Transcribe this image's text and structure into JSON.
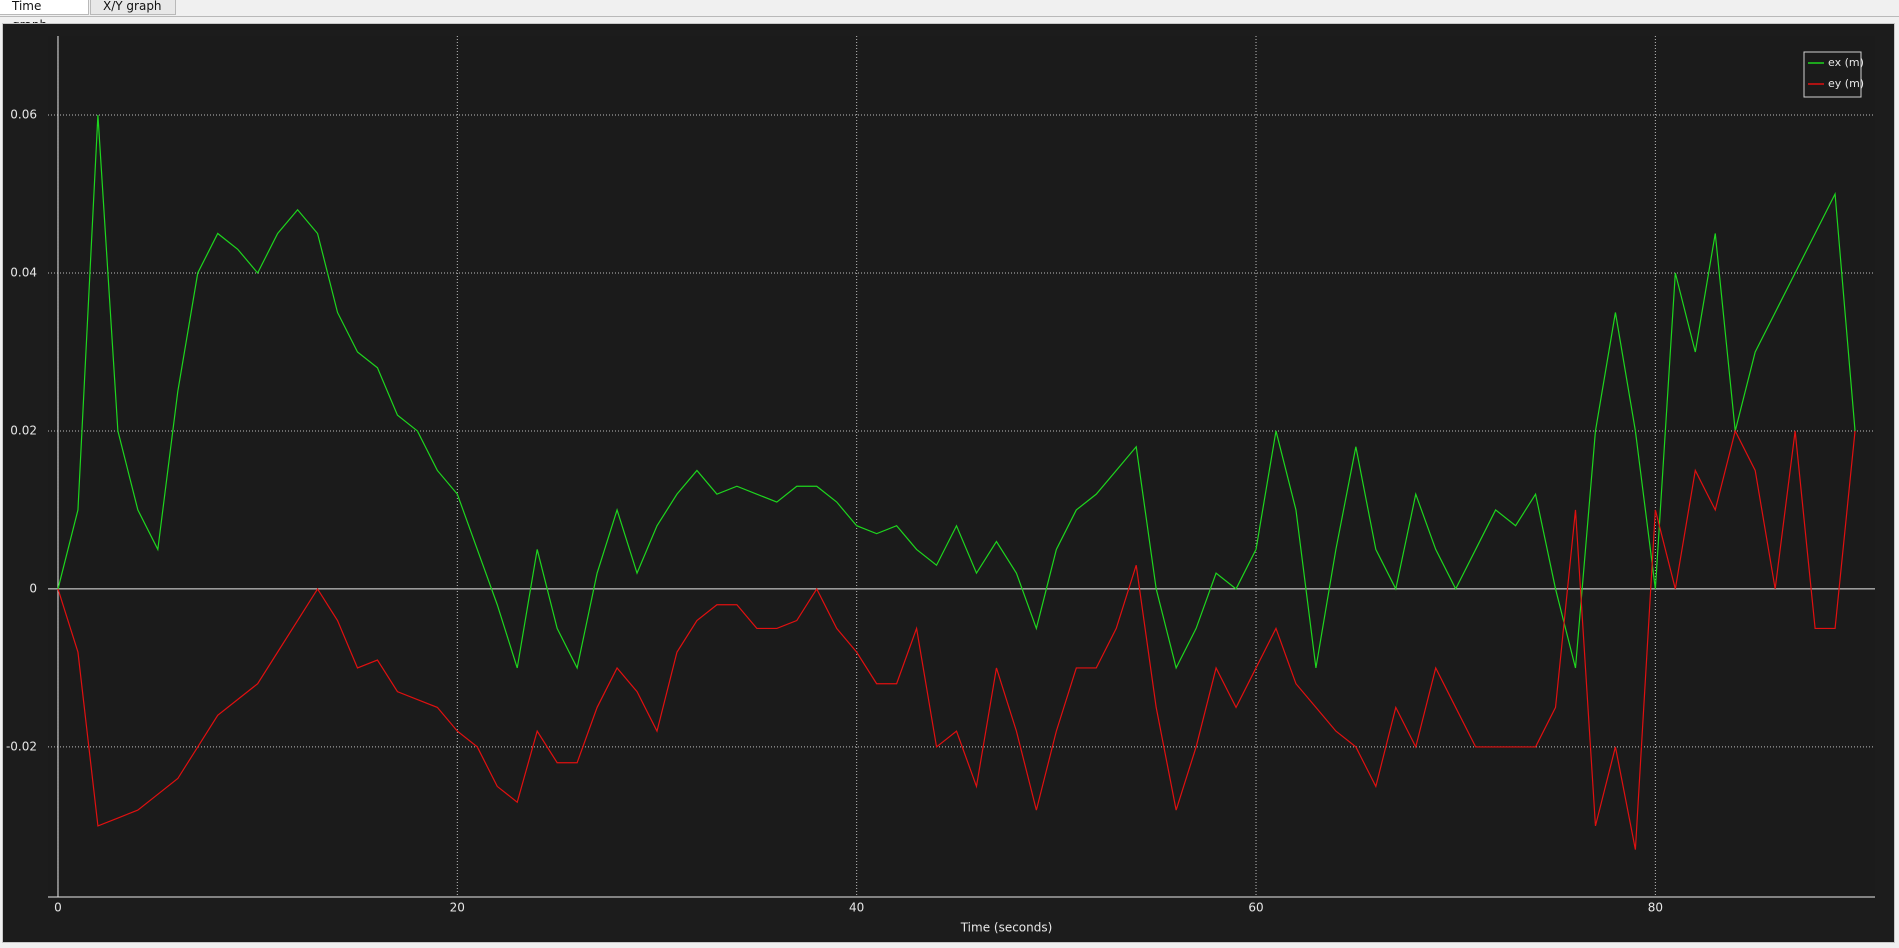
{
  "tabs": [
    "Time graph",
    "X/Y graph"
  ],
  "chart_data": {
    "type": "line",
    "xlabel": "Time (seconds)",
    "x": [
      0,
      1,
      2,
      3,
      4,
      5,
      6,
      7,
      8,
      9,
      10,
      11,
      12,
      13,
      14,
      15,
      16,
      17,
      18,
      19,
      20,
      21,
      22,
      23,
      24,
      25,
      26,
      27,
      28,
      29,
      30,
      31,
      32,
      33,
      34,
      35,
      36,
      37,
      38,
      39,
      40,
      41,
      42,
      43,
      44,
      45,
      46,
      47,
      48,
      49,
      50,
      51,
      52,
      53,
      54,
      55,
      56,
      57,
      58,
      59,
      60,
      61,
      62,
      63,
      64,
      65,
      66,
      67,
      68,
      69,
      70,
      71,
      72,
      73,
      74,
      75,
      76,
      77,
      78,
      79,
      80,
      81,
      82,
      83,
      84,
      85,
      86,
      87,
      88,
      89,
      90
    ],
    "series": [
      {
        "name": "ex (m)",
        "color": "#1ed51e",
        "values": [
          0,
          0.01,
          0.06,
          0.02,
          0.01,
          0.005,
          0.025,
          0.04,
          0.045,
          0.043,
          0.04,
          0.045,
          0.048,
          0.045,
          0.035,
          0.03,
          0.028,
          0.022,
          0.02,
          0.015,
          0.012,
          0.005,
          -0.002,
          -0.01,
          0.005,
          -0.005,
          -0.01,
          0.002,
          0.01,
          0.002,
          0.008,
          0.012,
          0.015,
          0.012,
          0.013,
          0.012,
          0.011,
          0.013,
          0.013,
          0.011,
          0.008,
          0.007,
          0.008,
          0.005,
          0.003,
          0.008,
          0.002,
          0.006,
          0.002,
          -0.005,
          0.005,
          0.01,
          0.012,
          0.015,
          0.018,
          0,
          -0.01,
          -0.005,
          0.002,
          0,
          0.005,
          0.02,
          0.01,
          -0.01,
          0.005,
          0.018,
          0.005,
          0,
          0.012,
          0.005,
          0,
          0.005,
          0.01,
          0.008,
          0.012,
          0,
          -0.01,
          0.02,
          0.035,
          0.02,
          0,
          0.04,
          0.03,
          0.045,
          0.02,
          0.03,
          0.035,
          0.04,
          0.045,
          0.05,
          0.02
        ]
      },
      {
        "name": "ey (m)",
        "color": "#e01010",
        "values": [
          0,
          -0.008,
          -0.03,
          -0.029,
          -0.028,
          -0.026,
          -0.024,
          -0.02,
          -0.016,
          -0.014,
          -0.012,
          -0.008,
          -0.004,
          0,
          -0.004,
          -0.01,
          -0.009,
          -0.013,
          -0.014,
          -0.015,
          -0.018,
          -0.02,
          -0.025,
          -0.027,
          -0.018,
          -0.022,
          -0.022,
          -0.015,
          -0.01,
          -0.013,
          -0.018,
          -0.008,
          -0.004,
          -0.002,
          -0.002,
          -0.005,
          -0.005,
          -0.004,
          0,
          -0.005,
          -0.008,
          -0.012,
          -0.012,
          -0.005,
          -0.02,
          -0.018,
          -0.025,
          -0.01,
          -0.018,
          -0.028,
          -0.018,
          -0.01,
          -0.01,
          -0.005,
          0.003,
          -0.015,
          -0.028,
          -0.02,
          -0.01,
          -0.015,
          -0.01,
          -0.005,
          -0.012,
          -0.015,
          -0.018,
          -0.02,
          -0.025,
          -0.015,
          -0.02,
          -0.01,
          -0.015,
          -0.02,
          -0.02,
          -0.02,
          -0.02,
          -0.015,
          0.01,
          -0.03,
          -0.02,
          -0.033,
          0.01,
          0,
          0.015,
          0.01,
          0.02,
          0.015,
          0,
          0.02,
          -0.005,
          -0.005,
          0.02
        ]
      }
    ],
    "xlim": [
      -0.5,
      91
    ],
    "ylim": [
      -0.039,
      0.07
    ],
    "xticks": [
      0,
      20,
      40,
      60,
      80
    ],
    "yticks": [
      -0.02,
      0,
      0.02,
      0.04,
      0.06
    ],
    "grid": true,
    "legend": "upper right"
  }
}
